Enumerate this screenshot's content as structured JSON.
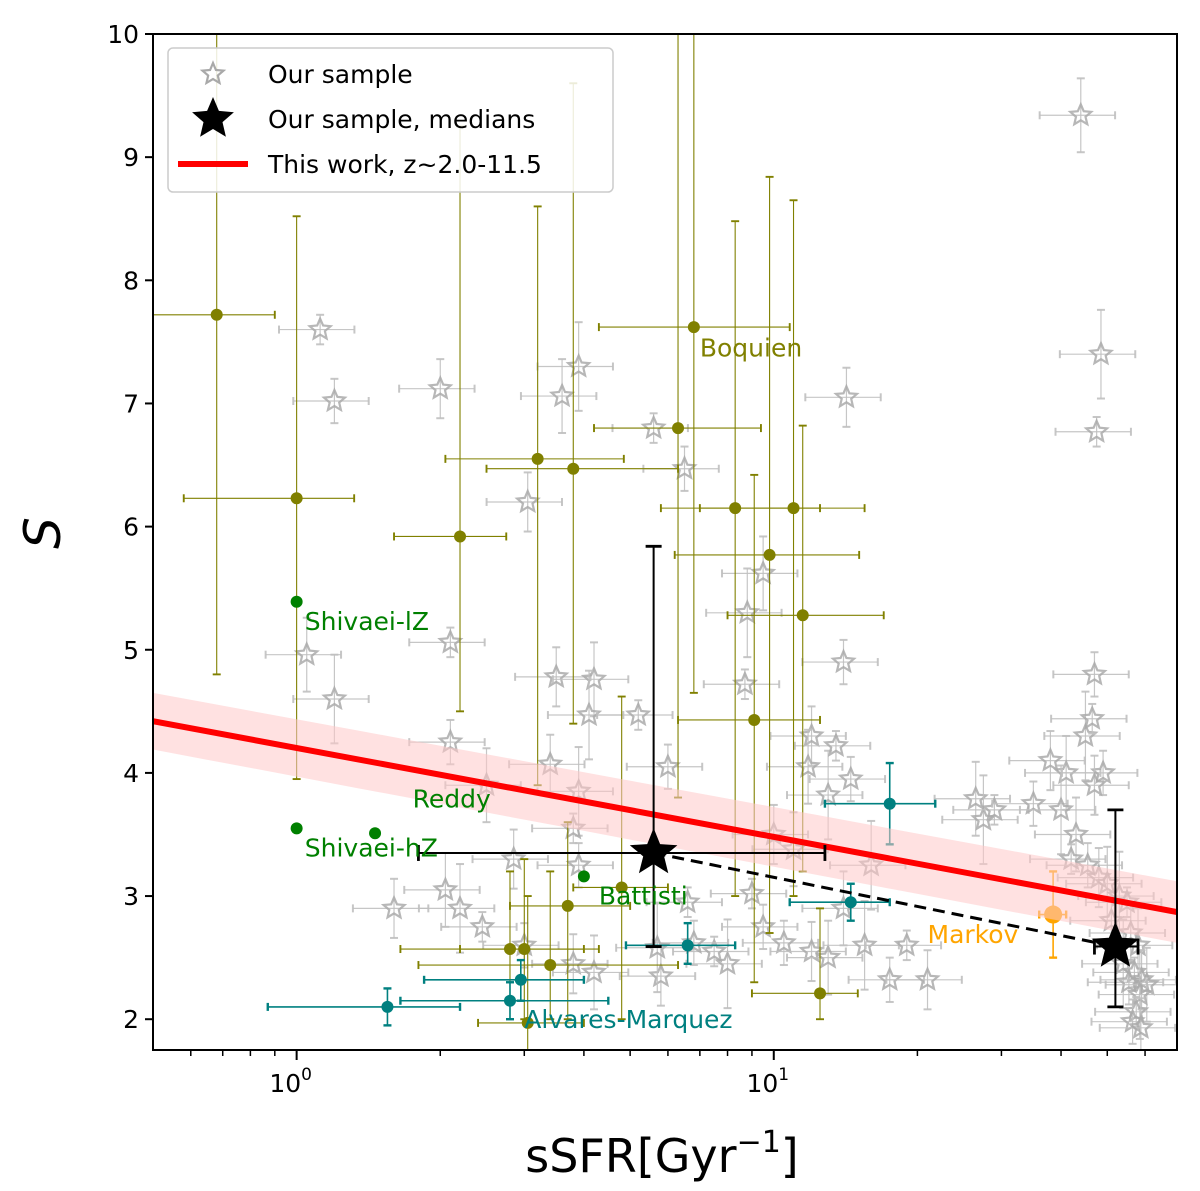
{
  "chart_data": {
    "type": "scatter",
    "xlabel_main": "sSFR[Gyr",
    "xlabel_sup": "−1",
    "xlabel_close": "]",
    "ylabel": "S",
    "xscale": "log",
    "xlim": [
      0.5,
      70
    ],
    "ylim": [
      1.75,
      10
    ],
    "x_ticks": [
      {
        "value": 1,
        "base": "10",
        "exp": "0"
      },
      {
        "value": 10,
        "base": "10",
        "exp": "1"
      }
    ],
    "y_ticks": [
      2,
      3,
      4,
      5,
      6,
      7,
      8,
      9,
      10
    ],
    "grid": false,
    "legend": {
      "position": "top-left",
      "entries": [
        {
          "label": "Our sample",
          "marker": "open-star",
          "color": "#a9a9a9"
        },
        {
          "label": "Our sample, medians",
          "marker": "filled-star",
          "color": "#000000"
        },
        {
          "label": "This work, z~2.0-11.5",
          "marker": "line",
          "color": "#ff0000"
        }
      ]
    },
    "fit_line": {
      "x": [
        0.5,
        70
      ],
      "y": [
        4.42,
        2.87
      ],
      "band": [
        0.23,
        0.25
      ],
      "color": "#ff0000",
      "band_color": "#ffc8c8"
    },
    "medians": [
      {
        "x": 5.6,
        "y": 3.35,
        "xerr": [
          1.8,
          12.8
        ],
        "yerr": [
          2.59,
          5.84
        ]
      },
      {
        "x": 52,
        "y": 2.59,
        "xerr": [
          47,
          58
        ],
        "yerr": [
          2.1,
          3.7
        ]
      }
    ],
    "median_connector": {
      "x": [
        5.6,
        52
      ],
      "y": [
        3.35,
        2.59
      ],
      "style": "dashed"
    },
    "sample_points": [
      {
        "x": 1.12,
        "y": 7.6
      },
      {
        "x": 1.2,
        "y": 7.02
      },
      {
        "x": 2.0,
        "y": 7.12
      },
      {
        "x": 1.05,
        "y": 4.96
      },
      {
        "x": 1.2,
        "y": 4.6
      },
      {
        "x": 2.1,
        "y": 5.06
      },
      {
        "x": 2.1,
        "y": 4.25
      },
      {
        "x": 3.05,
        "y": 6.2
      },
      {
        "x": 3.6,
        "y": 7.06
      },
      {
        "x": 3.9,
        "y": 7.3
      },
      {
        "x": 5.6,
        "y": 6.8
      },
      {
        "x": 6.5,
        "y": 6.47
      },
      {
        "x": 14.2,
        "y": 7.05
      },
      {
        "x": 9.5,
        "y": 5.62
      },
      {
        "x": 8.8,
        "y": 5.3
      },
      {
        "x": 8.7,
        "y": 4.72
      },
      {
        "x": 14.0,
        "y": 4.9
      },
      {
        "x": 3.5,
        "y": 4.78
      },
      {
        "x": 4.2,
        "y": 4.76
      },
      {
        "x": 4.1,
        "y": 4.47
      },
      {
        "x": 5.2,
        "y": 4.47
      },
      {
        "x": 6.0,
        "y": 4.05
      },
      {
        "x": 3.4,
        "y": 4.07
      },
      {
        "x": 2.5,
        "y": 3.9
      },
      {
        "x": 3.9,
        "y": 3.85
      },
      {
        "x": 3.8,
        "y": 3.55
      },
      {
        "x": 3.9,
        "y": 3.25
      },
      {
        "x": 12.0,
        "y": 4.3
      },
      {
        "x": 11.8,
        "y": 4.05
      },
      {
        "x": 13.0,
        "y": 3.82
      },
      {
        "x": 13.5,
        "y": 4.22
      },
      {
        "x": 14.5,
        "y": 3.95
      },
      {
        "x": 10.0,
        "y": 3.5
      },
      {
        "x": 11.0,
        "y": 3.38
      },
      {
        "x": 16.0,
        "y": 3.25
      },
      {
        "x": 9.0,
        "y": 3.02
      },
      {
        "x": 10.5,
        "y": 2.62
      },
      {
        "x": 12.0,
        "y": 2.55
      },
      {
        "x": 14.0,
        "y": 2.9
      },
      {
        "x": 8.0,
        "y": 2.45
      },
      {
        "x": 7.5,
        "y": 2.55
      },
      {
        "x": 6.8,
        "y": 2.62
      },
      {
        "x": 5.8,
        "y": 2.35
      },
      {
        "x": 13.0,
        "y": 2.5
      },
      {
        "x": 15.5,
        "y": 2.6
      },
      {
        "x": 19.0,
        "y": 2.6
      },
      {
        "x": 17.5,
        "y": 2.32
      },
      {
        "x": 21.0,
        "y": 2.32
      },
      {
        "x": 26.5,
        "y": 3.79
      },
      {
        "x": 27.5,
        "y": 3.62
      },
      {
        "x": 29.0,
        "y": 3.7
      },
      {
        "x": 35.0,
        "y": 3.75
      },
      {
        "x": 38.0,
        "y": 4.1
      },
      {
        "x": 41.0,
        "y": 4.0
      },
      {
        "x": 45.0,
        "y": 4.3
      },
      {
        "x": 46.5,
        "y": 4.44
      },
      {
        "x": 49.0,
        "y": 4.0
      },
      {
        "x": 47.0,
        "y": 3.9
      },
      {
        "x": 43.0,
        "y": 3.5
      },
      {
        "x": 40.0,
        "y": 3.7
      },
      {
        "x": 42.0,
        "y": 3.3
      },
      {
        "x": 45.5,
        "y": 3.25
      },
      {
        "x": 48.0,
        "y": 3.15
      },
      {
        "x": 50.0,
        "y": 3.1
      },
      {
        "x": 53.0,
        "y": 3.0
      },
      {
        "x": 55.0,
        "y": 2.95
      },
      {
        "x": 51.0,
        "y": 2.8
      },
      {
        "x": 56.0,
        "y": 2.7
      },
      {
        "x": 58.0,
        "y": 2.6
      },
      {
        "x": 54.0,
        "y": 2.45
      },
      {
        "x": 57.0,
        "y": 2.38
      },
      {
        "x": 55.5,
        "y": 2.3
      },
      {
        "x": 59.0,
        "y": 2.32
      },
      {
        "x": 60.5,
        "y": 2.28
      },
      {
        "x": 58.5,
        "y": 2.2
      },
      {
        "x": 57.5,
        "y": 2.06
      },
      {
        "x": 56.5,
        "y": 1.98
      },
      {
        "x": 58.8,
        "y": 1.93
      },
      {
        "x": 44.0,
        "y": 9.34
      },
      {
        "x": 48.5,
        "y": 7.4
      },
      {
        "x": 47.5,
        "y": 6.77
      },
      {
        "x": 47.0,
        "y": 4.8
      },
      {
        "x": 1.6,
        "y": 2.9
      },
      {
        "x": 2.05,
        "y": 3.05
      },
      {
        "x": 2.2,
        "y": 2.9
      },
      {
        "x": 2.45,
        "y": 2.75
      },
      {
        "x": 3.0,
        "y": 2.6
      },
      {
        "x": 3.8,
        "y": 2.45
      },
      {
        "x": 4.2,
        "y": 2.38
      },
      {
        "x": 5.7,
        "y": 2.58
      },
      {
        "x": 6.6,
        "y": 2.95
      },
      {
        "x": 9.5,
        "y": 2.75
      },
      {
        "x": 2.85,
        "y": 3.3
      }
    ],
    "reference_series": [
      {
        "name": "Boquien",
        "color": "#808000",
        "points": [
          {
            "x": 0.68,
            "y": 7.72,
            "xerr": [
              0.5,
              0.9
            ],
            "yerr": [
              4.8,
              10
            ]
          },
          {
            "x": 1.0,
            "y": 6.23,
            "xerr": [
              0.58,
              1.32
            ],
            "yerr": [
              3.95,
              8.52
            ]
          },
          {
            "x": 2.2,
            "y": 5.92,
            "xerr": [
              1.6,
              2.75
            ],
            "yerr": [
              4.5,
              9.25
            ]
          },
          {
            "x": 3.2,
            "y": 6.55,
            "xerr": [
              2.05,
              4.85
            ],
            "yerr": [
              3.9,
              8.6
            ]
          },
          {
            "x": 3.8,
            "y": 6.47,
            "xerr": [
              2.5,
              6.3
            ],
            "yerr": [
              4.4,
              9.6
            ]
          },
          {
            "x": 6.8,
            "y": 7.62,
            "xerr": [
              4.3,
              10.8
            ],
            "yerr": [
              4.65,
              10
            ]
          },
          {
            "x": 6.3,
            "y": 6.8,
            "xerr": [
              4.2,
              9.4
            ],
            "yerr": [
              3.8,
              10
            ]
          },
          {
            "x": 8.3,
            "y": 6.15,
            "xerr": [
              5.8,
              12.5
            ],
            "yerr": [
              3.0,
              8.48
            ]
          },
          {
            "x": 11.0,
            "y": 6.15,
            "xerr": [
              7.0,
              15.5
            ],
            "yerr": [
              3.0,
              8.65
            ]
          },
          {
            "x": 9.8,
            "y": 5.77,
            "xerr": [
              6.2,
              15.1
            ],
            "yerr": [
              2.7,
              8.84
            ]
          },
          {
            "x": 11.5,
            "y": 5.28,
            "xerr": [
              8.0,
              17.0
            ],
            "yerr": [
              3.2,
              6.82
            ]
          },
          {
            "x": 9.1,
            "y": 4.43,
            "xerr": [
              6.3,
              12.5
            ],
            "yerr": [
              2.3,
              6.42
            ]
          },
          {
            "x": 4.8,
            "y": 3.07,
            "xerr": [
              3.8,
              6.0
            ],
            "yerr": [
              2.0,
              4.62
            ]
          },
          {
            "x": 3.7,
            "y": 2.92,
            "xerr": [
              2.8,
              5.0
            ],
            "yerr": [
              2.0,
              3.6
            ]
          },
          {
            "x": 2.8,
            "y": 2.57,
            "xerr": [
              1.65,
              4.0
            ],
            "yerr": [
              2.0,
              3.2
            ]
          },
          {
            "x": 3.0,
            "y": 2.57,
            "xerr": [
              2.2,
              4.3
            ],
            "yerr": [
              2.0,
              3.3
            ]
          },
          {
            "x": 3.4,
            "y": 2.44,
            "xerr": [
              1.8,
              6.3
            ],
            "yerr": [
              2.0,
              3.2
            ]
          },
          {
            "x": 3.05,
            "y": 1.97,
            "xerr": [
              2.4,
              4.0
            ],
            "yerr": [
              1.75,
              3.0
            ]
          },
          {
            "x": 12.5,
            "y": 2.21,
            "xerr": [
              9.0,
              15.0
            ],
            "yerr": [
              2.0,
              2.9
            ]
          }
        ]
      },
      {
        "name": "Alvares-Marquez",
        "color": "#008080",
        "points": [
          {
            "x": 1.55,
            "y": 2.1,
            "xerr": [
              0.87,
              2.2
            ],
            "yerr": [
              1.95,
              2.25
            ]
          },
          {
            "x": 2.8,
            "y": 2.15,
            "xerr": [
              1.65,
              4.5
            ],
            "yerr": [
              2.0,
              2.3
            ]
          },
          {
            "x": 2.95,
            "y": 2.32,
            "xerr": [
              1.85,
              4.0
            ],
            "yerr": [
              2.15,
              2.48
            ]
          },
          {
            "x": 6.6,
            "y": 2.6,
            "xerr": [
              4.9,
              8.3
            ],
            "yerr": [
              2.45,
              2.78
            ]
          },
          {
            "x": 14.5,
            "y": 2.95,
            "xerr": [
              10.8,
              17.5
            ],
            "yerr": [
              2.8,
              3.1
            ]
          },
          {
            "x": 17.5,
            "y": 3.75,
            "xerr": [
              12.8,
              21.8
            ],
            "yerr": [
              3.42,
              4.08
            ]
          }
        ]
      },
      {
        "name": "Markov",
        "color": "#ffa500",
        "points": [
          {
            "x": 38.5,
            "y": 2.85,
            "xerr": [
              36.0,
              41.0
            ],
            "yerr": [
              2.5,
              3.2
            ]
          }
        ]
      },
      {
        "name": "Shivaei-lZ",
        "color": "#008000",
        "points": [
          {
            "x": 1.0,
            "y": 5.39
          }
        ]
      },
      {
        "name": "Shivaei-hZ",
        "color": "#008000",
        "points": [
          {
            "x": 1.0,
            "y": 3.55
          }
        ]
      },
      {
        "name": "Reddy",
        "color": "#008000",
        "points": [
          {
            "x": 1.46,
            "y": 3.51
          }
        ]
      },
      {
        "name": "Battisti",
        "color": "#008000",
        "points": [
          {
            "x": 4.0,
            "y": 3.16
          }
        ]
      }
    ],
    "annotations": [
      {
        "id": "boquien",
        "text": "Boquien",
        "x": 7.0,
        "y": 7.38,
        "color": "#808000"
      },
      {
        "id": "shivaei-lz",
        "text": "Shivaei-lZ",
        "x": 1.04,
        "y": 5.16,
        "color": "#008000"
      },
      {
        "id": "reddy",
        "text": "Reddy",
        "x": 1.75,
        "y": 3.72,
        "color": "#008000"
      },
      {
        "id": "shivaei-hz",
        "text": "Shivaei-hZ",
        "x": 1.04,
        "y": 3.32,
        "color": "#008000"
      },
      {
        "id": "battisti",
        "text": "Battisti",
        "x": 4.3,
        "y": 2.93,
        "color": "#008000"
      },
      {
        "id": "markov",
        "text": "Markov",
        "x": 21.0,
        "y": 2.62,
        "color": "#ffa500"
      },
      {
        "id": "alvares-marquez",
        "text": "Alvares-Marquez",
        "x": 3.0,
        "y": 1.93,
        "color": "#008080"
      }
    ]
  }
}
